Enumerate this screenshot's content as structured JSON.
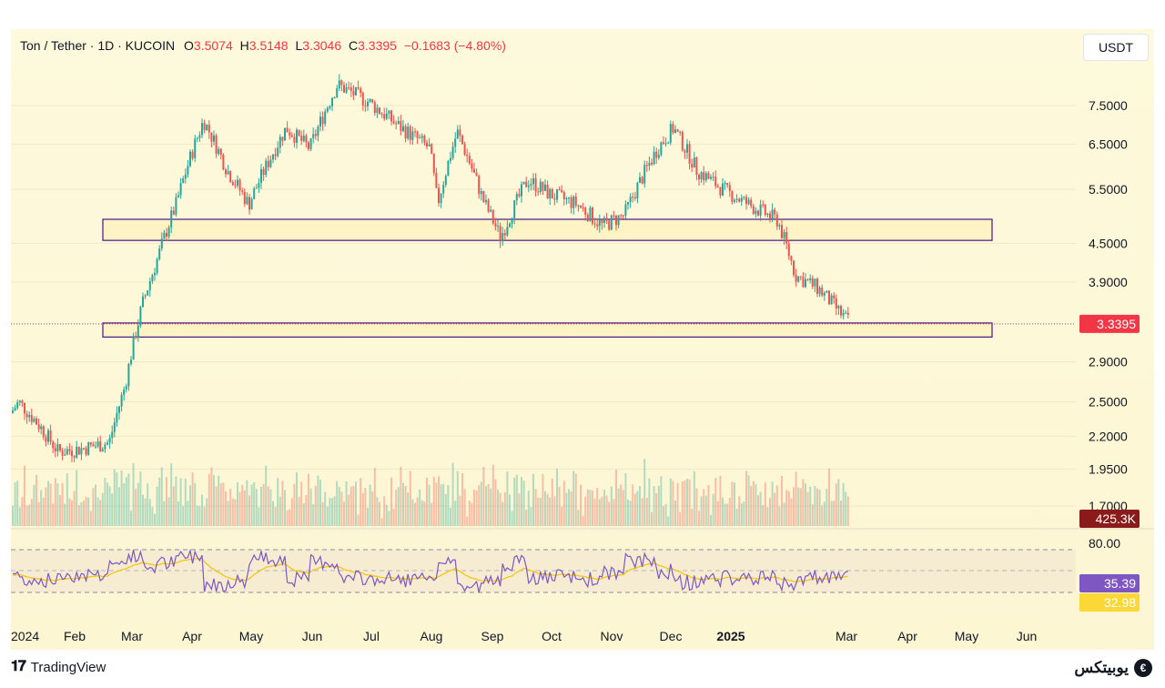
{
  "legend": {
    "symbol": "Ton / Tether · 1D · KUCOIN",
    "o_label": "O",
    "o_value": "3.5074",
    "h_label": "H",
    "h_value": "3.5148",
    "l_label": "L",
    "l_value": "3.3046",
    "c_label": "C",
    "c_value": "3.3395",
    "change": "−0.1683 (−4.80%)"
  },
  "currency_label": "USDT",
  "footer": {
    "brand": "TradingView",
    "watermark": "یوبیتکس"
  },
  "colors": {
    "up": "#26a69a",
    "down": "#ef5350",
    "rsi": "#7e57c2",
    "rsi_ma": "#f5c518",
    "zone_border": "#4a148c",
    "zone_fill": "#fdf3c4",
    "price_badge": "#f23645",
    "volume_badge": "#8b1a1a",
    "rsi_badge": "#7e57c2",
    "rsi_ma_badge": "#fbd835"
  },
  "chart_data": {
    "type": "candlestick",
    "pair": "TON/USDT",
    "interval": "1D",
    "exchange": "KUCOIN",
    "y_scale": "log",
    "y_ticks": [
      "7.5000",
      "6.5000",
      "5.5000",
      "4.5000",
      "3.9000",
      "2.9000",
      "2.5000",
      "2.2000",
      "1.9500",
      "1.7000"
    ],
    "x_ticks": [
      "2024",
      "Feb",
      "Mar",
      "Apr",
      "May",
      "Jun",
      "Jul",
      "Aug",
      "Sep",
      "Oct",
      "Nov",
      "Dec",
      "2025",
      "Mar",
      "Apr",
      "May",
      "Jun"
    ],
    "last_price": "3.3395",
    "volume_label": "425.3K",
    "rsi_level_label": "80.00",
    "rsi_value": "35.39",
    "rsi_ma_value": "32.98",
    "zones": [
      {
        "low": 4.55,
        "high": 4.92
      },
      {
        "low": 3.18,
        "high": 3.35
      }
    ],
    "series": [
      {
        "date": "2024-01-01",
        "close": 2.4
      },
      {
        "date": "2024-01-05",
        "close": 2.5
      },
      {
        "date": "2024-01-15",
        "close": 2.3
      },
      {
        "date": "2024-01-25",
        "close": 2.08
      },
      {
        "date": "2024-02-05",
        "close": 2.1
      },
      {
        "date": "2024-02-20",
        "close": 2.15
      },
      {
        "date": "2024-02-28",
        "close": 2.65
      },
      {
        "date": "2024-03-08",
        "close": 3.6
      },
      {
        "date": "2024-03-15",
        "close": 4.2
      },
      {
        "date": "2024-03-25",
        "close": 5.2
      },
      {
        "date": "2024-04-08",
        "close": 7.1
      },
      {
        "date": "2024-04-20",
        "close": 5.9
      },
      {
        "date": "2024-05-01",
        "close": 5.2
      },
      {
        "date": "2024-05-20",
        "close": 6.9
      },
      {
        "date": "2024-06-01",
        "close": 6.4
      },
      {
        "date": "2024-06-15",
        "close": 8.1
      },
      {
        "date": "2024-07-01",
        "close": 7.6
      },
      {
        "date": "2024-07-15",
        "close": 7.0
      },
      {
        "date": "2024-08-01",
        "close": 6.4
      },
      {
        "date": "2024-08-05",
        "close": 5.2
      },
      {
        "date": "2024-08-15",
        "close": 6.8
      },
      {
        "date": "2024-08-28",
        "close": 5.3
      },
      {
        "date": "2024-09-06",
        "close": 4.6
      },
      {
        "date": "2024-09-20",
        "close": 5.7
      },
      {
        "date": "2024-10-01",
        "close": 5.4
      },
      {
        "date": "2024-10-15",
        "close": 5.2
      },
      {
        "date": "2024-10-28",
        "close": 4.8
      },
      {
        "date": "2024-11-08",
        "close": 5.0
      },
      {
        "date": "2024-11-25",
        "close": 6.4
      },
      {
        "date": "2024-12-03",
        "close": 6.9
      },
      {
        "date": "2024-12-15",
        "close": 5.9
      },
      {
        "date": "2024-12-28",
        "close": 5.5
      },
      {
        "date": "2025-01-10",
        "close": 5.2
      },
      {
        "date": "2025-01-25",
        "close": 4.9
      },
      {
        "date": "2025-02-03",
        "close": 4.0
      },
      {
        "date": "2025-02-15",
        "close": 3.8
      },
      {
        "date": "2025-02-25",
        "close": 3.5
      },
      {
        "date": "2025-03-03",
        "close": 3.34
      }
    ]
  }
}
